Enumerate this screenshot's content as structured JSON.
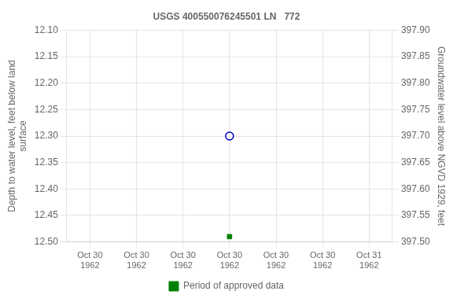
{
  "chart_data": {
    "type": "scatter",
    "title": "USGS 400550076245501 LN   772",
    "ylabel": "Depth to water level, feet below land\nsurface",
    "y2label": "Groundwater level above NGVD 1929, feet",
    "categories": [
      "Oct 30\n1962",
      "Oct 30\n1962",
      "Oct 30\n1962",
      "Oct 30\n1962",
      "Oct 30\n1962",
      "Oct 30\n1962",
      "Oct 31\n1962"
    ],
    "series": [
      {
        "color": "#0000cc",
        "marker": "open_circle",
        "values": [
          null,
          null,
          null,
          12.3,
          null,
          null,
          null
        ]
      },
      {
        "name": "Period of approved data",
        "color": "#008000",
        "marker": "square",
        "values": [
          null,
          null,
          null,
          12.49,
          null,
          null,
          null
        ]
      }
    ],
    "ylim": [
      12.5,
      12.1
    ],
    "yticks": [
      {
        "value": 12.1,
        "label": "12.10"
      },
      {
        "value": 12.15,
        "label": "12.15"
      },
      {
        "value": 12.2,
        "label": "12.20"
      },
      {
        "value": 12.25,
        "label": "12.25"
      },
      {
        "value": 12.3,
        "label": "12.30"
      },
      {
        "value": 12.35,
        "label": "12.35"
      },
      {
        "value": 12.4,
        "label": "12.40"
      },
      {
        "value": 12.45,
        "label": "12.45"
      },
      {
        "value": 12.5,
        "label": "12.50"
      }
    ],
    "y2lim": [
      397.5,
      397.9
    ],
    "y2ticks": [
      {
        "value": 397.9,
        "label": "397.90"
      },
      {
        "value": 397.85,
        "label": "397.85"
      },
      {
        "value": 397.8,
        "label": "397.80"
      },
      {
        "value": 397.75,
        "label": "397.75"
      },
      {
        "value": 397.7,
        "label": "397.70"
      },
      {
        "value": 397.65,
        "label": "397.65"
      },
      {
        "value": 397.6,
        "label": "397.60"
      },
      {
        "value": 397.55,
        "label": "397.55"
      },
      {
        "value": 397.5,
        "label": "397.50"
      }
    ],
    "grid": true,
    "legend": "bottom"
  }
}
